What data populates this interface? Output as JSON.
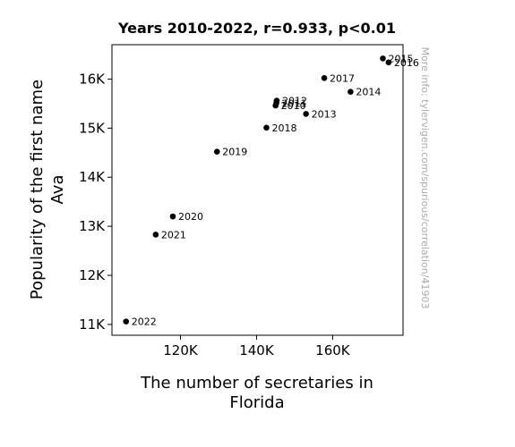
{
  "chart_data": {
    "type": "scatter",
    "title": "Years 2010-2022, r=0.933, p<0.01",
    "xlabel_lines": [
      "The number of secretaries in",
      "Florida"
    ],
    "ylabel_lines": [
      "Popularity of the first name",
      "Ava"
    ],
    "xlim": [
      102000,
      178500
    ],
    "ylim": [
      10780,
      16700
    ],
    "x_ticks": [
      {
        "value": 120000,
        "label": "120K"
      },
      {
        "value": 140000,
        "label": "140K"
      },
      {
        "value": 160000,
        "label": "160K"
      }
    ],
    "y_ticks": [
      {
        "value": 11000,
        "label": "11K"
      },
      {
        "value": 12000,
        "label": "12K"
      },
      {
        "value": 13000,
        "label": "13K"
      },
      {
        "value": 14000,
        "label": "14K"
      },
      {
        "value": 15000,
        "label": "15K"
      },
      {
        "value": 16000,
        "label": "16K"
      }
    ],
    "points": [
      {
        "label": "2010",
        "x": 145000,
        "y": 15460
      },
      {
        "label": "2011",
        "x": 145200,
        "y": 15510
      },
      {
        "label": "2012",
        "x": 145300,
        "y": 15560
      },
      {
        "label": "2013",
        "x": 153000,
        "y": 15290
      },
      {
        "label": "2014",
        "x": 164700,
        "y": 15740
      },
      {
        "label": "2015",
        "x": 173200,
        "y": 16420
      },
      {
        "label": "2016",
        "x": 174700,
        "y": 16340
      },
      {
        "label": "2017",
        "x": 157800,
        "y": 16020
      },
      {
        "label": "2018",
        "x": 142600,
        "y": 15010
      },
      {
        "label": "2019",
        "x": 129600,
        "y": 14520
      },
      {
        "label": "2020",
        "x": 118000,
        "y": 13200
      },
      {
        "label": "2021",
        "x": 113500,
        "y": 12830
      },
      {
        "label": "2022",
        "x": 105700,
        "y": 11060
      }
    ],
    "watermark": "More info: tylervigen.com/spurious/correlation/41903",
    "grid": false,
    "marker_color": "#000000"
  }
}
